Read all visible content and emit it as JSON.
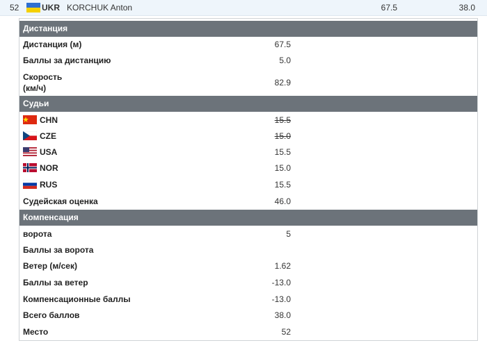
{
  "athlete": {
    "rank": "52",
    "nation": "UKR",
    "name": "KORCHUK Anton",
    "distance": "67.5",
    "points": "38.0"
  },
  "sections": [
    {
      "title": "Дистанция",
      "rows": [
        {
          "label": "Дистанция (м)",
          "value": "67.5"
        },
        {
          "label": "Баллы за дистанцию",
          "value": "5.0"
        },
        {
          "label": "Скорость (км/ч)",
          "value": "82.9"
        }
      ]
    },
    {
      "title": "Судьи",
      "rows": [
        {
          "label": "CHN",
          "value": "15.5",
          "struck": true
        },
        {
          "label": "CZE",
          "value": "15.0",
          "struck": true
        },
        {
          "label": "USA",
          "value": "15.5"
        },
        {
          "label": "NOR",
          "value": "15.0"
        },
        {
          "label": "RUS",
          "value": "15.5"
        },
        {
          "label": "Судейская оценка",
          "value": "46.0"
        }
      ]
    },
    {
      "title": "Компенсация",
      "rows": [
        {
          "label": "ворота",
          "value": "5"
        },
        {
          "label": "Баллы за ворота"
        },
        {
          "label": "Ветер (м/сек)",
          "value": "1.62"
        },
        {
          "label": "Баллы за ветер",
          "value": "-13.0"
        },
        {
          "label": "Компенсационные баллы",
          "value": "-13.0"
        },
        {
          "label": "Всего баллов",
          "value": "38.0"
        },
        {
          "label": "Место",
          "value": "52"
        }
      ]
    }
  ]
}
